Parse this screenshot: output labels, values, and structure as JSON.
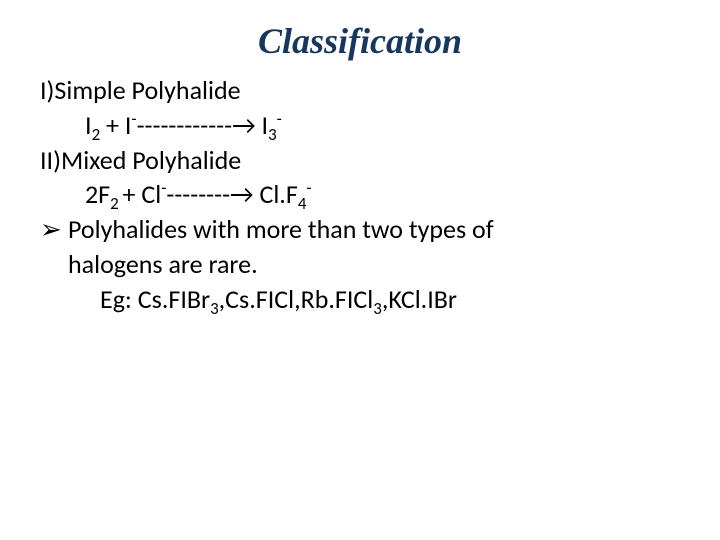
{
  "title": "Classification",
  "title_color": "#17375e",
  "title_font": "Times New Roman, italic, bold",
  "body_color": "#000000",
  "body_font": "Calibri",
  "background_color": "#ffffff",
  "lines": {
    "l1": "I)Simple Polyhalide",
    "eq1_a": "I",
    "eq1_a_sub": "2",
    "eq1_plus": " + I",
    "eq1_sup1": "-",
    "eq1_dashes": "------------",
    "eq1_arrow": "→",
    "eq1_prod": " I",
    "eq1_prod_sub": "3",
    "eq1_prod_sup": "-",
    "l2": "II)Mixed Polyhalide",
    "eq2_a": "2F",
    "eq2_a_sub": "2 ",
    "eq2_plus": "+ Cl",
    "eq2_sup1": "-",
    "eq2_dashes": "--------",
    "eq2_arrow": "→",
    "eq2_prod": " Cl.F",
    "eq2_prod_sub": "4",
    "eq2_prod_sup": "-",
    "bullet_arrow": "➢",
    "l3a": "Polyhalides with more than two types of",
    "l3b": "halogens are rare.",
    "eg_label": "Eg: ",
    "eg1_a": "Cs.FIBr",
    "eg1_sub": "3",
    "eg_sep1": ",",
    "eg2": "Cs.FICl,",
    "eg3_a": "Rb.FICl",
    "eg3_sub": "3",
    "eg_sep2": ",",
    "eg4": "KCl.IBr"
  }
}
